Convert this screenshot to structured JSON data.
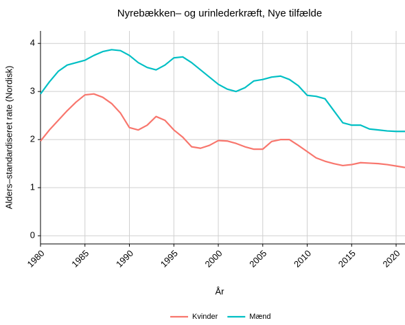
{
  "chart_data": {
    "type": "line",
    "title": "Nyrebækken– og urinlederkræft, Nye tilfælde",
    "x_label": "År",
    "y_label": "Alders–standardiseret rate (Nordisk)",
    "x": [
      1980,
      1981,
      1982,
      1983,
      1984,
      1985,
      1986,
      1987,
      1988,
      1989,
      1990,
      1991,
      1992,
      1993,
      1994,
      1995,
      1996,
      1997,
      1998,
      1999,
      2000,
      2001,
      2002,
      2003,
      2004,
      2005,
      2006,
      2007,
      2008,
      2009,
      2010,
      2011,
      2012,
      2013,
      2014,
      2015,
      2016,
      2017,
      2018,
      2019,
      2020,
      2021
    ],
    "series": [
      {
        "name": "Kvinder",
        "color": "#f8766d",
        "values": [
          1.97,
          2.2,
          2.4,
          2.6,
          2.78,
          2.93,
          2.95,
          2.88,
          2.75,
          2.55,
          2.25,
          2.2,
          2.3,
          2.48,
          2.4,
          2.2,
          2.05,
          1.85,
          1.82,
          1.88,
          1.98,
          1.97,
          1.92,
          1.85,
          1.8,
          1.8,
          1.96,
          2.0,
          2.0,
          1.88,
          1.75,
          1.62,
          1.55,
          1.5,
          1.46,
          1.48,
          1.52,
          1.51,
          1.5,
          1.48,
          1.45,
          1.42
        ]
      },
      {
        "name": "Mænd",
        "color": "#00bfc4",
        "values": [
          2.95,
          3.2,
          3.42,
          3.55,
          3.6,
          3.65,
          3.75,
          3.83,
          3.87,
          3.85,
          3.75,
          3.6,
          3.5,
          3.45,
          3.55,
          3.7,
          3.72,
          3.6,
          3.45,
          3.3,
          3.15,
          3.05,
          3.0,
          3.08,
          3.22,
          3.25,
          3.3,
          3.32,
          3.25,
          3.12,
          2.92,
          2.9,
          2.85,
          2.6,
          2.35,
          2.3,
          2.3,
          2.22,
          2.2,
          2.18,
          2.17,
          2.17
        ]
      }
    ],
    "xlim": [
      1980,
      2021
    ],
    "xticks": [
      1980,
      1985,
      1990,
      1995,
      2000,
      2005,
      2010,
      2015,
      2020
    ],
    "ylim": [
      -0.17,
      4.26
    ],
    "yticks": [
      0,
      1,
      2,
      3,
      4
    ],
    "grid": true,
    "legend": "bottom"
  }
}
